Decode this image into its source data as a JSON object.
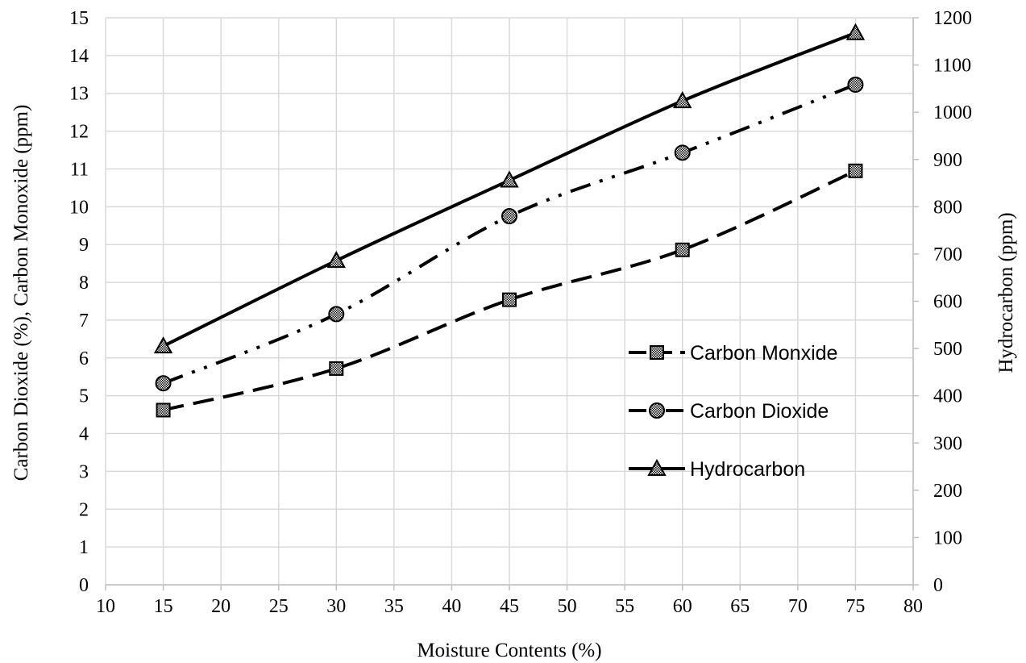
{
  "chart_data": {
    "type": "line",
    "title": "",
    "xlabel": "Moisture Contents (%)",
    "ylabel": "Carbon Dioxide (%), Carbon Monoxide (ppm)",
    "y2label": "Hydrocarbon (ppm)",
    "xlim": [
      10,
      80
    ],
    "ylim": [
      0,
      15
    ],
    "y2lim": [
      0,
      1200
    ],
    "x_ticks": [
      10,
      15,
      20,
      25,
      30,
      35,
      40,
      45,
      50,
      55,
      60,
      65,
      70,
      75,
      80
    ],
    "y_ticks": [
      0,
      1,
      2,
      3,
      4,
      5,
      6,
      7,
      8,
      9,
      10,
      11,
      12,
      13,
      14,
      15
    ],
    "y2_ticks": [
      0,
      100,
      200,
      300,
      400,
      500,
      600,
      700,
      800,
      900,
      1000,
      1100,
      1200
    ],
    "grid": true,
    "legend_position": "right",
    "series": [
      {
        "name": "Carbon Monxide",
        "axis": "left",
        "marker": "square",
        "line_style": "long-dash",
        "x": [
          15,
          30,
          45,
          60,
          75
        ],
        "y": [
          4.62,
          5.72,
          7.54,
          8.86,
          10.95
        ]
      },
      {
        "name": "Carbon Dioxide",
        "axis": "left",
        "marker": "circle",
        "line_style": "dash-dot-dot",
        "x": [
          15,
          30,
          45,
          60,
          75
        ],
        "y": [
          5.33,
          7.16,
          9.75,
          11.43,
          13.23
        ]
      },
      {
        "name": "Hydrocarbon",
        "axis": "right",
        "marker": "triangle",
        "line_style": "solid",
        "x": [
          15,
          30,
          45,
          60,
          75
        ],
        "y": [
          505,
          686,
          856,
          1024,
          1168
        ]
      }
    ],
    "colors": {
      "line": "#000000",
      "grid": "#d9d9d9",
      "marker_fill": "#9a9a9a"
    }
  }
}
